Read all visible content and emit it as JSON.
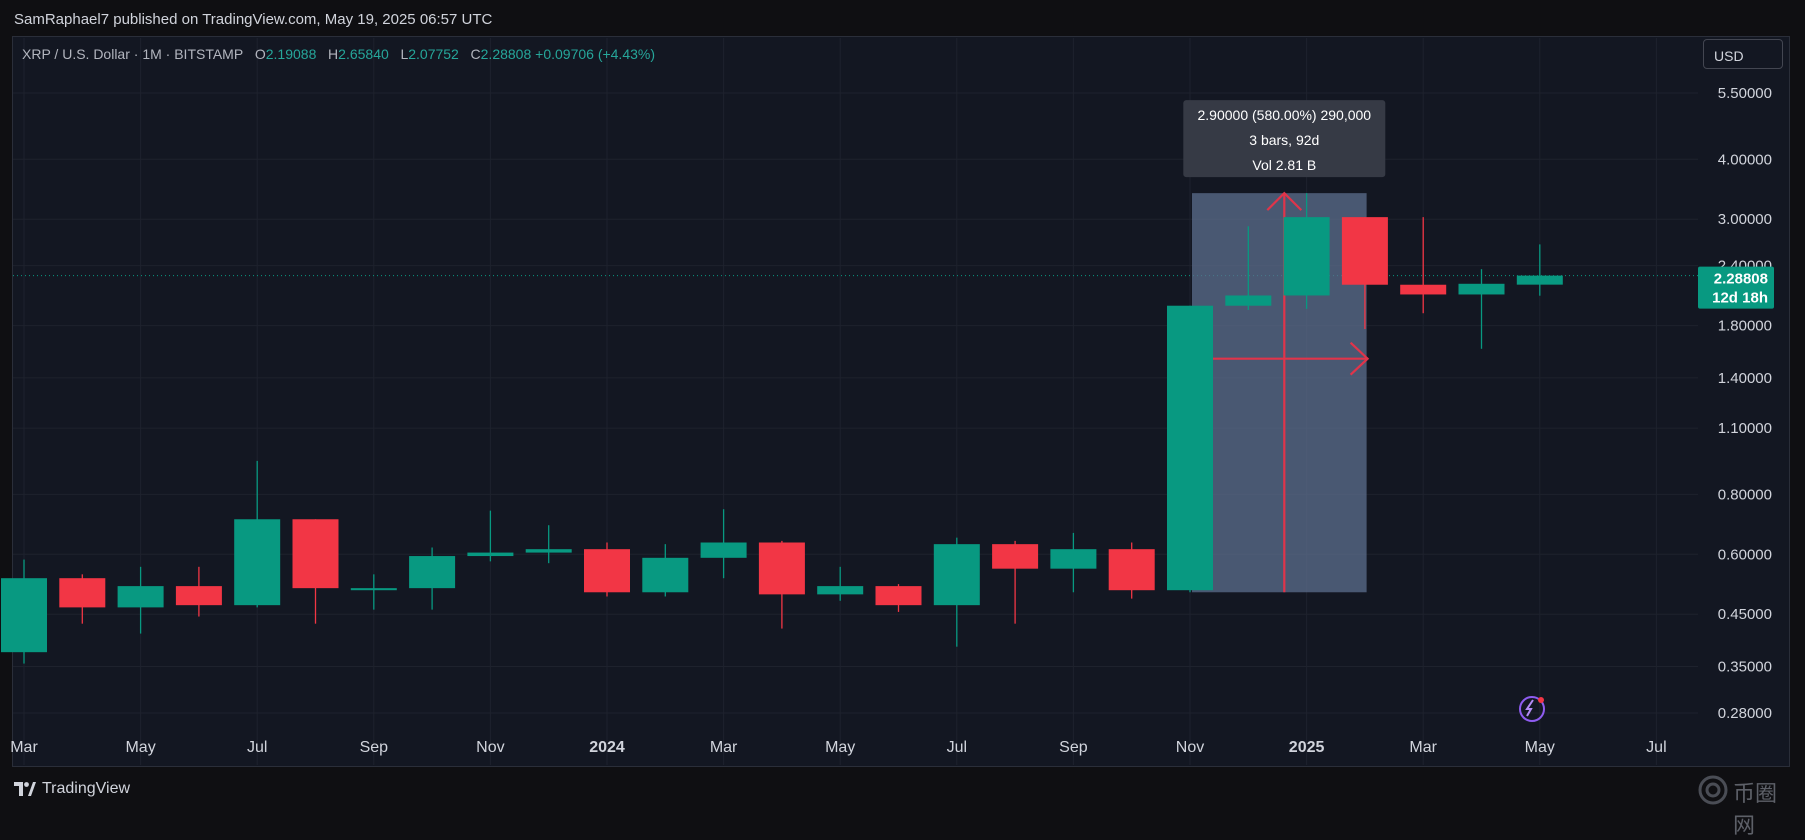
{
  "header": {
    "publisher_line": "SamRaphael7 published on TradingView.com, May 19, 2025 06:57 UTC"
  },
  "symbol": {
    "name": "XRP / U.S. Dollar · 1M · BITSTAMP",
    "o_label": "O",
    "o_value": "2.19088",
    "h_label": "H",
    "h_value": "2.65840",
    "l_label": "L",
    "l_value": "2.07752",
    "c_label": "C",
    "c_value": "2.28808",
    "change": "+0.09706 (+4.43%)"
  },
  "currency_button": "USD",
  "price_tag": {
    "price": "2.28808",
    "countdown": "12d 18h"
  },
  "measure_tooltip": {
    "line1": "2.90000 (580.00%) 290,000",
    "line2": "3 bars, 92d",
    "line3": "Vol 2.81 B"
  },
  "footer": {
    "brand": "TradingView",
    "watermark": "币圈网"
  },
  "colors": {
    "up": "#089981",
    "down": "#f23645",
    "background": "#131722",
    "grid": "#1e222d",
    "measure": "#5c6f8e"
  },
  "chart_data": {
    "type": "candlestick",
    "scale": "log",
    "y_ticks": [
      "5.50000",
      "4.00000",
      "3.00000",
      "2.40000",
      "1.80000",
      "1.40000",
      "1.10000",
      "0.80000",
      "0.60000",
      "0.45000",
      "0.35000",
      "0.28000"
    ],
    "x_ticks": [
      "Mar",
      "May",
      "Jul",
      "Sep",
      "Nov",
      "2024",
      "Mar",
      "May",
      "Jul",
      "Sep",
      "Nov",
      "2025",
      "Mar",
      "May",
      "Jul"
    ],
    "candles": [
      {
        "date": "2023-03",
        "o": 0.375,
        "h": 0.585,
        "l": 0.355,
        "c": 0.535
      },
      {
        "date": "2023-04",
        "o": 0.535,
        "h": 0.545,
        "l": 0.43,
        "c": 0.465
      },
      {
        "date": "2023-05",
        "o": 0.465,
        "h": 0.565,
        "l": 0.41,
        "c": 0.515
      },
      {
        "date": "2023-06",
        "o": 0.515,
        "h": 0.565,
        "l": 0.445,
        "c": 0.47
      },
      {
        "date": "2023-07",
        "o": 0.47,
        "h": 0.94,
        "l": 0.465,
        "c": 0.71
      },
      {
        "date": "2023-08",
        "o": 0.71,
        "h": 0.71,
        "l": 0.43,
        "c": 0.51
      },
      {
        "date": "2023-09",
        "o": 0.505,
        "h": 0.545,
        "l": 0.46,
        "c": 0.51
      },
      {
        "date": "2023-10",
        "o": 0.51,
        "h": 0.62,
        "l": 0.46,
        "c": 0.595
      },
      {
        "date": "2023-11",
        "o": 0.595,
        "h": 0.74,
        "l": 0.58,
        "c": 0.605
      },
      {
        "date": "2023-12",
        "o": 0.605,
        "h": 0.69,
        "l": 0.575,
        "c": 0.615
      },
      {
        "date": "2024-01",
        "o": 0.615,
        "h": 0.635,
        "l": 0.49,
        "c": 0.5
      },
      {
        "date": "2024-02",
        "o": 0.5,
        "h": 0.63,
        "l": 0.49,
        "c": 0.59
      },
      {
        "date": "2024-03",
        "o": 0.59,
        "h": 0.745,
        "l": 0.535,
        "c": 0.635
      },
      {
        "date": "2024-04",
        "o": 0.635,
        "h": 0.64,
        "l": 0.42,
        "c": 0.495
      },
      {
        "date": "2024-05",
        "o": 0.495,
        "h": 0.565,
        "l": 0.48,
        "c": 0.515
      },
      {
        "date": "2024-06",
        "o": 0.515,
        "h": 0.52,
        "l": 0.455,
        "c": 0.47
      },
      {
        "date": "2024-07",
        "o": 0.47,
        "h": 0.65,
        "l": 0.385,
        "c": 0.63
      },
      {
        "date": "2024-08",
        "o": 0.63,
        "h": 0.64,
        "l": 0.43,
        "c": 0.56
      },
      {
        "date": "2024-09",
        "o": 0.56,
        "h": 0.665,
        "l": 0.5,
        "c": 0.615
      },
      {
        "date": "2024-10",
        "o": 0.615,
        "h": 0.635,
        "l": 0.485,
        "c": 0.505
      },
      {
        "date": "2024-11",
        "o": 0.505,
        "h": 1.98,
        "l": 0.5,
        "c": 1.98
      },
      {
        "date": "2024-12",
        "o": 1.98,
        "h": 2.9,
        "l": 1.94,
        "c": 2.08
      },
      {
        "date": "2025-01",
        "o": 2.08,
        "h": 3.4,
        "l": 1.95,
        "c": 3.03
      },
      {
        "date": "2025-02",
        "o": 3.03,
        "h": 3.03,
        "l": 1.77,
        "c": 2.19
      },
      {
        "date": "2025-03",
        "o": 2.19,
        "h": 3.03,
        "l": 1.91,
        "c": 2.09
      },
      {
        "date": "2025-04",
        "o": 2.09,
        "h": 2.36,
        "l": 1.61,
        "c": 2.2
      },
      {
        "date": "2025-05",
        "o": 2.19088,
        "h": 2.6584,
        "l": 2.07752,
        "c": 2.28808
      }
    ],
    "measure": {
      "from_date": "2024-11",
      "to_date": "2025-01",
      "low": 0.5,
      "high": 3.4
    }
  }
}
